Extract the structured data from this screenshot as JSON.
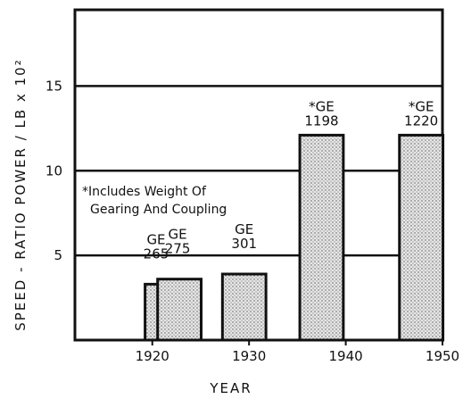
{
  "chart_data": {
    "type": "bar",
    "title": "",
    "xlabel": "YEAR",
    "ylabel": "SPEED - RATIO POWER / LB x 10²",
    "xlim": [
      1912,
      1950
    ],
    "ylim": [
      0,
      19.5
    ],
    "xticks": [
      1920,
      1930,
      1940,
      1950
    ],
    "yticks": [
      5,
      10,
      15
    ],
    "grid": "horizontal lines at 5, 10, 15",
    "bars": [
      {
        "label_top": "GE",
        "label_bottom": "265",
        "year": 1921.5,
        "width": 4.5,
        "value": 3.3
      },
      {
        "label_top": "GE",
        "label_bottom": "275",
        "year": 1922.8,
        "width": 4.5,
        "value": 3.6
      },
      {
        "label_top": "GE",
        "label_bottom": "301",
        "year": 1929.5,
        "width": 4.5,
        "value": 3.9
      },
      {
        "label_top": "*GE",
        "label_bottom": "1198",
        "year": 1937.5,
        "width": 4.5,
        "value": 12.1
      },
      {
        "label_top": "*GE",
        "label_bottom": "1220",
        "year": 1947.8,
        "width": 4.5,
        "value": 12.1
      }
    ],
    "annotations": [
      {
        "text_line1": "*Includes Weight Of",
        "text_line2": "Gearing And Coupling"
      }
    ]
  }
}
